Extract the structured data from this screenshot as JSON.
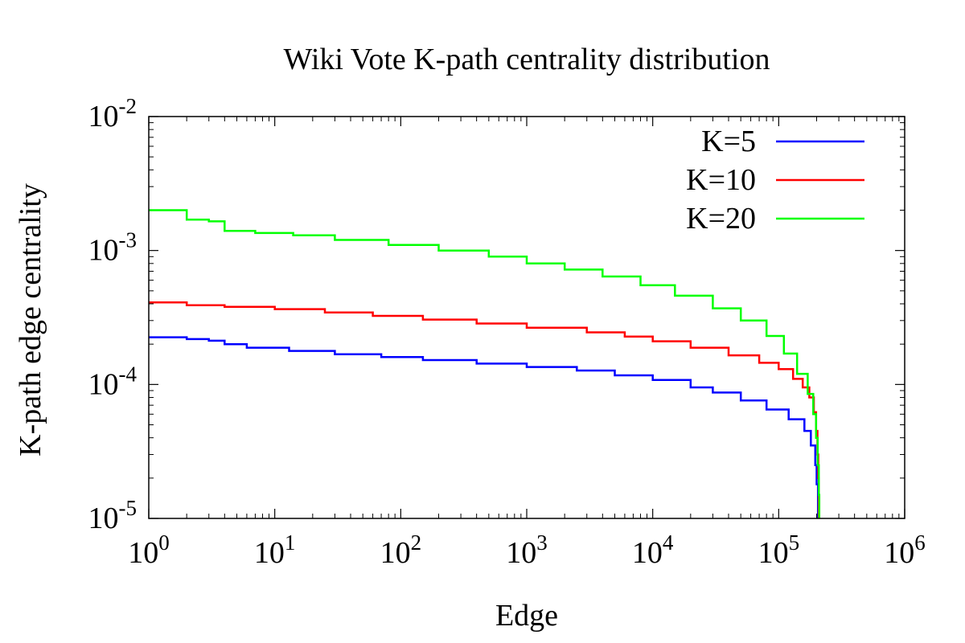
{
  "chart_data": {
    "type": "line",
    "title": "Wiki Vote K-path centrality distribution",
    "xlabel": "Edge",
    "ylabel": "K-path edge centrality",
    "xscale": "log",
    "yscale": "log",
    "xlim": [
      1,
      1000000
    ],
    "ylim": [
      1e-05,
      0.01
    ],
    "x_ticks": [
      {
        "base": "10",
        "exp": "0",
        "value": 1
      },
      {
        "base": "10",
        "exp": "1",
        "value": 10
      },
      {
        "base": "10",
        "exp": "2",
        "value": 100
      },
      {
        "base": "10",
        "exp": "3",
        "value": 1000
      },
      {
        "base": "10",
        "exp": "4",
        "value": 10000
      },
      {
        "base": "10",
        "exp": "5",
        "value": 100000
      },
      {
        "base": "10",
        "exp": "6",
        "value": 1000000
      }
    ],
    "y_ticks": [
      {
        "base": "10",
        "exp": "-5",
        "value": 1e-05
      },
      {
        "base": "10",
        "exp": "-4",
        "value": 0.0001
      },
      {
        "base": "10",
        "exp": "-3",
        "value": 0.001
      },
      {
        "base": "10",
        "exp": "-2",
        "value": 0.01
      }
    ],
    "legend_position": "top-right",
    "series": [
      {
        "name": "K=5",
        "color": "#0000ff",
        "points": [
          [
            1,
            0.000225
          ],
          [
            2,
            0.000218
          ],
          [
            3,
            0.000212
          ],
          [
            4,
            0.0002
          ],
          [
            6,
            0.000188
          ],
          [
            13,
            0.000178
          ],
          [
            30,
            0.000168
          ],
          [
            70,
            0.00016
          ],
          [
            150,
            0.000152
          ],
          [
            400,
            0.000143
          ],
          [
            1000,
            0.000135
          ],
          [
            2500,
            0.000127
          ],
          [
            5000,
            0.000117
          ],
          [
            10000,
            0.000108
          ],
          [
            20000,
            9.5e-05
          ],
          [
            30000,
            8.7e-05
          ],
          [
            50000,
            7.6e-05
          ],
          [
            80000,
            6.5e-05
          ],
          [
            120000,
            5.5e-05
          ],
          [
            160000,
            4.5e-05
          ],
          [
            180000,
            3.5e-05
          ],
          [
            195000,
            2.5e-05
          ],
          [
            200000,
            1.8e-05
          ],
          [
            205000,
            1e-05
          ]
        ]
      },
      {
        "name": "K=10",
        "color": "#ff0000",
        "points": [
          [
            1,
            0.00041
          ],
          [
            2,
            0.00039
          ],
          [
            4,
            0.00038
          ],
          [
            10,
            0.000365
          ],
          [
            25,
            0.000345
          ],
          [
            60,
            0.000325
          ],
          [
            150,
            0.000305
          ],
          [
            400,
            0.000285
          ],
          [
            1000,
            0.000265
          ],
          [
            3000,
            0.000245
          ],
          [
            6000,
            0.000228
          ],
          [
            10000,
            0.00021
          ],
          [
            20000,
            0.000188
          ],
          [
            40000,
            0.000165
          ],
          [
            70000,
            0.000145
          ],
          [
            100000,
            0.00013
          ],
          [
            130000,
            0.00011
          ],
          [
            155000,
            9.5e-05
          ],
          [
            175000,
            8e-05
          ],
          [
            190000,
            6.2e-05
          ],
          [
            198000,
            4.5e-05
          ],
          [
            203000,
            3e-05
          ],
          [
            206000,
            2e-05
          ],
          [
            208000,
            1e-05
          ]
        ]
      },
      {
        "name": "K=20",
        "color": "#00ff00",
        "points": [
          [
            1,
            0.002
          ],
          [
            2,
            0.0017
          ],
          [
            3,
            0.00165
          ],
          [
            4,
            0.0014
          ],
          [
            7,
            0.00135
          ],
          [
            14,
            0.0013
          ],
          [
            30,
            0.0012
          ],
          [
            80,
            0.0011
          ],
          [
            200,
            0.001
          ],
          [
            500,
            0.0009
          ],
          [
            1000,
            0.0008
          ],
          [
            2000,
            0.00072
          ],
          [
            4000,
            0.00064
          ],
          [
            8000,
            0.00055
          ],
          [
            15000,
            0.00046
          ],
          [
            30000,
            0.00037
          ],
          [
            50000,
            0.0003
          ],
          [
            80000,
            0.00023
          ],
          [
            110000,
            0.00017
          ],
          [
            140000,
            0.00012
          ],
          [
            170000,
            8.5e-05
          ],
          [
            188000,
            6e-05
          ],
          [
            198000,
            4e-05
          ],
          [
            204000,
            2.5e-05
          ],
          [
            208000,
            1.5e-05
          ],
          [
            210000,
            1e-05
          ]
        ]
      }
    ]
  }
}
